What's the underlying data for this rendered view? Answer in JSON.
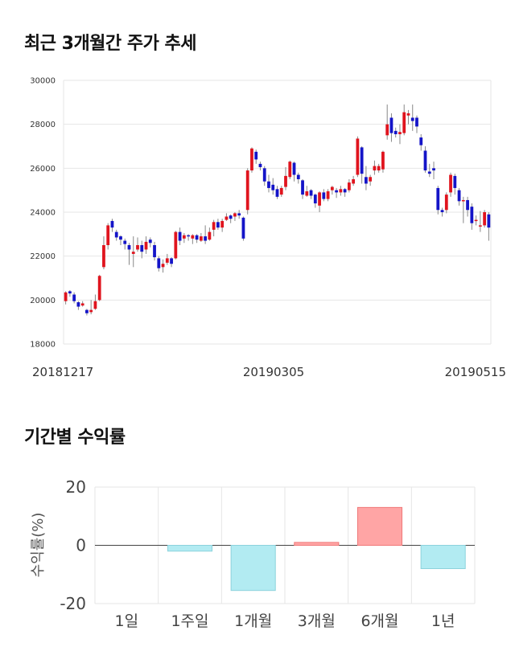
{
  "sections": {
    "price_title": "최근 3개월간 주가 추세",
    "returns_title": "기간별 수익률"
  },
  "chart_data": [
    {
      "type": "candlestick",
      "title": "최근 3개월간 주가 추세",
      "x_labels": [
        "20181217",
        "20190305",
        "20190515"
      ],
      "y_ticks": [
        "30000",
        "28000",
        "26000",
        "24000",
        "22000",
        "20000",
        "18000"
      ],
      "ylim": [
        18000,
        30000
      ],
      "grid": true,
      "colors": {
        "up": "#e0141e",
        "down": "#1414c8",
        "wick": "#888888"
      },
      "candles": [
        [
          19950,
          20350,
          20400,
          19800
        ],
        [
          20400,
          20300,
          20450,
          20150
        ],
        [
          20250,
          19950,
          20350,
          19850
        ],
        [
          19900,
          19700,
          19950,
          19550
        ],
        [
          19750,
          19850,
          19950,
          19700
        ],
        [
          19550,
          19400,
          19600,
          19300
        ],
        [
          19450,
          19550,
          20000,
          19350
        ],
        [
          19600,
          19950,
          20250,
          19550
        ],
        [
          20000,
          21100,
          21150,
          19950
        ],
        [
          21500,
          22500,
          22900,
          21400
        ],
        [
          22500,
          23400,
          23500,
          22300
        ],
        [
          23600,
          23300,
          23700,
          23100
        ],
        [
          23100,
          22850,
          23200,
          22700
        ],
        [
          22900,
          22750,
          22950,
          22500
        ],
        [
          22700,
          22550,
          22800,
          22300
        ],
        [
          22500,
          22300,
          22600,
          21600
        ],
        [
          22100,
          22200,
          22900,
          21500
        ],
        [
          22300,
          22500,
          22850,
          22200
        ],
        [
          22500,
          22200,
          22700,
          21900
        ],
        [
          22300,
          22650,
          22900,
          22100
        ],
        [
          22750,
          22600,
          22850,
          22400
        ],
        [
          22500,
          21950,
          22650,
          21800
        ],
        [
          21900,
          21450,
          22000,
          21300
        ],
        [
          21500,
          21650,
          21850,
          21250
        ],
        [
          21700,
          21900,
          22100,
          21600
        ],
        [
          21900,
          21650,
          21950,
          21500
        ],
        [
          21900,
          23100,
          23150,
          21850
        ],
        [
          23100,
          22700,
          23300,
          22500
        ],
        [
          22800,
          22950,
          23050,
          22600
        ],
        [
          22950,
          22900,
          23000,
          22700
        ],
        [
          22800,
          22950,
          23000,
          22550
        ],
        [
          22950,
          22750,
          23000,
          22600
        ],
        [
          22700,
          22900,
          23050,
          22650
        ],
        [
          22900,
          22700,
          23400,
          22550
        ],
        [
          22750,
          23100,
          23300,
          22700
        ],
        [
          23200,
          23550,
          23650,
          22900
        ],
        [
          23550,
          23300,
          23700,
          23200
        ],
        [
          23300,
          23600,
          23700,
          23100
        ],
        [
          23650,
          23800,
          23950,
          23600
        ],
        [
          23850,
          23700,
          23900,
          23500
        ],
        [
          23800,
          23950,
          24000,
          23600
        ],
        [
          23950,
          23850,
          24100,
          23700
        ],
        [
          23750,
          22800,
          23800,
          22700
        ],
        [
          24100,
          25900,
          26000,
          23900
        ],
        [
          25900,
          26900,
          26950,
          25800
        ],
        [
          26750,
          26400,
          26850,
          26200
        ],
        [
          26200,
          26050,
          26300,
          25900
        ],
        [
          26000,
          25400,
          26100,
          25200
        ],
        [
          25400,
          25100,
          25700,
          24900
        ],
        [
          25250,
          25000,
          25550,
          24800
        ],
        [
          25050,
          24700,
          25200,
          24600
        ],
        [
          24800,
          25100,
          25200,
          24700
        ],
        [
          25150,
          25650,
          26050,
          25000
        ],
        [
          25600,
          26300,
          26350,
          25500
        ],
        [
          26250,
          25700,
          26300,
          25400
        ],
        [
          25700,
          25500,
          25800,
          25300
        ],
        [
          25450,
          24800,
          25500,
          24600
        ],
        [
          24750,
          24950,
          25200,
          24700
        ],
        [
          25000,
          24750,
          25050,
          24600
        ],
        [
          24800,
          24400,
          24850,
          24200
        ],
        [
          24300,
          24900,
          24950,
          24000
        ],
        [
          24900,
          24600,
          25050,
          24500
        ],
        [
          24600,
          24950,
          25050,
          24500
        ],
        [
          25000,
          25150,
          25200,
          24800
        ],
        [
          25000,
          24900,
          25100,
          24650
        ],
        [
          24900,
          25050,
          25200,
          24750
        ],
        [
          25050,
          24900,
          25100,
          24700
        ],
        [
          25000,
          25350,
          25500,
          24900
        ],
        [
          25300,
          25500,
          25650,
          25200
        ],
        [
          25700,
          27350,
          27450,
          25600
        ],
        [
          26950,
          25750,
          27000,
          25300
        ],
        [
          25600,
          25300,
          26100,
          25000
        ],
        [
          25400,
          25600,
          25700,
          25200
        ],
        [
          25900,
          26100,
          26350,
          25700
        ],
        [
          25900,
          26100,
          26200,
          25800
        ],
        [
          25950,
          26750,
          26800,
          25800
        ],
        [
          27500,
          28000,
          28900,
          27300
        ],
        [
          28300,
          27600,
          28500,
          27200
        ],
        [
          27700,
          27550,
          27850,
          27400
        ],
        [
          27550,
          27650,
          28000,
          27100
        ],
        [
          27600,
          28550,
          28900,
          27500
        ],
        [
          28400,
          28500,
          28650,
          28000
        ],
        [
          28300,
          28150,
          28900,
          27700
        ],
        [
          28300,
          27900,
          28400,
          27600
        ],
        [
          27400,
          27050,
          27550,
          26800
        ],
        [
          26800,
          25900,
          27000,
          25800
        ],
        [
          25850,
          25750,
          26200,
          25600
        ],
        [
          26000,
          25900,
          26300,
          25500
        ],
        [
          25100,
          24100,
          25200,
          23900
        ],
        [
          24100,
          24000,
          24200,
          23800
        ],
        [
          24100,
          24800,
          24900,
          23950
        ],
        [
          24900,
          25700,
          25800,
          24700
        ],
        [
          25650,
          25100,
          25750,
          24800
        ],
        [
          25000,
          24500,
          25100,
          24300
        ],
        [
          24500,
          24550,
          24700,
          23500
        ],
        [
          24550,
          24100,
          24700,
          23800
        ],
        [
          24250,
          23500,
          24400,
          23200
        ],
        [
          23600,
          23650,
          23850,
          23400
        ],
        [
          23350,
          23400,
          24050,
          23100
        ],
        [
          23400,
          24000,
          24100,
          23300
        ],
        [
          23900,
          23300,
          24000,
          22700
        ]
      ]
    },
    {
      "type": "bar",
      "title": "기간별 수익률",
      "categories": [
        "1일",
        "1주일",
        "1개월",
        "3개월",
        "6개월",
        "1년"
      ],
      "values": [
        0,
        -2,
        -15.5,
        1,
        13,
        -8
      ],
      "ylabel": "수익률(%)",
      "y_ticks": [
        "20",
        "0",
        "-20"
      ],
      "ylim": [
        -20,
        20
      ],
      "grid": true,
      "colors": {
        "positive_fill": "#ffa5a5",
        "positive_stroke": "#f07878",
        "negative_fill": "#b2ebf2",
        "negative_stroke": "#8cd2dc"
      }
    }
  ]
}
